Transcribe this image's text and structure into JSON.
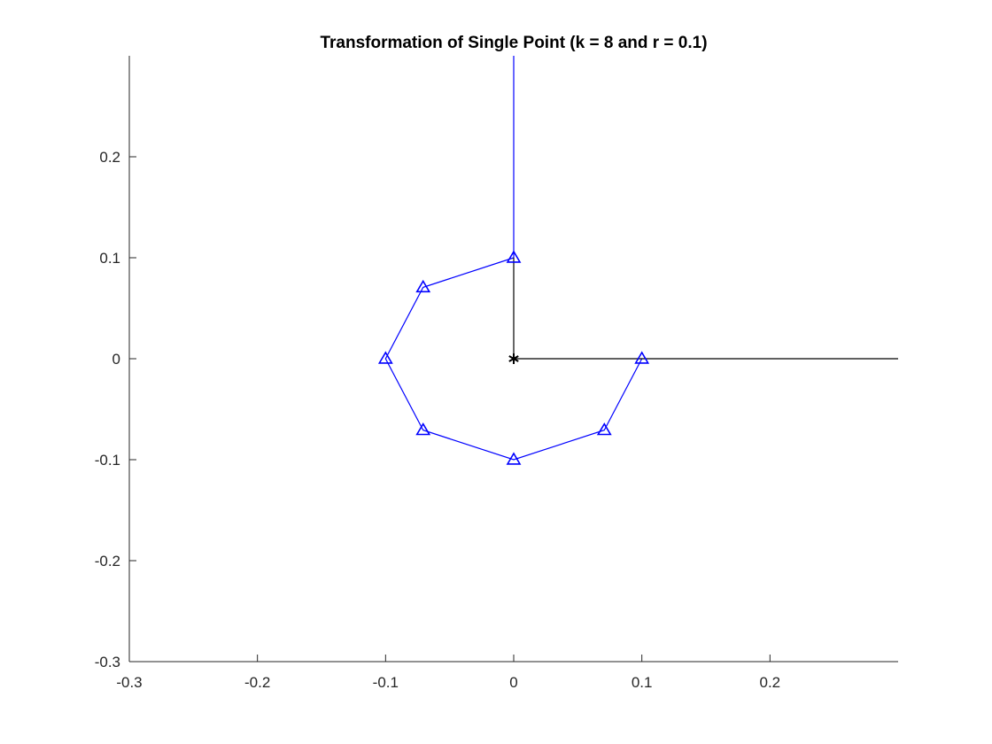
{
  "chart_data": {
    "type": "line",
    "title": "Transformation of Single Point (k = 8 and r = 0.1)",
    "xlabel": "",
    "ylabel": "",
    "xlim": [
      -0.3,
      0.3
    ],
    "ylim": [
      -0.3,
      0.3
    ],
    "x_ticks": [
      -0.3,
      -0.2,
      -0.1,
      0,
      0.1,
      0.2
    ],
    "x_tick_labels": [
      "-0.3",
      "-0.2",
      "-0.1",
      "0",
      "0.1",
      "0.2"
    ],
    "y_ticks": [
      -0.3,
      -0.2,
      -0.1,
      0,
      0.1,
      0.2
    ],
    "y_tick_labels": [
      "-0.3",
      "-0.2",
      "-0.1",
      "0",
      "0.1",
      "0.2"
    ],
    "grid": false,
    "axes_box": "left-bottom",
    "series": [
      {
        "role": "transformed-points",
        "color": "#0000ff",
        "marker": "triangle",
        "x": [
          0.0,
          -0.0707,
          -0.1,
          -0.0707,
          0.0,
          0.0707,
          0.1
        ],
        "y": [
          0.1,
          0.0707,
          0.0,
          -0.0707,
          -0.1,
          -0.0707,
          0.0
        ]
      },
      {
        "role": "vertical-line-from-start-point",
        "color": "#0000ff",
        "marker": "none",
        "x": [
          0.0,
          0.0
        ],
        "y": [
          0.1,
          0.3
        ]
      },
      {
        "role": "radius-lines",
        "color": "#000000",
        "marker": "none",
        "x": [
          0.0,
          0.0,
          0.3
        ],
        "y": [
          0.1,
          0.0,
          0.0
        ]
      },
      {
        "role": "center",
        "color": "#000000",
        "marker": "asterisk",
        "x": [
          0.0
        ],
        "y": [
          0.0
        ]
      }
    ]
  }
}
